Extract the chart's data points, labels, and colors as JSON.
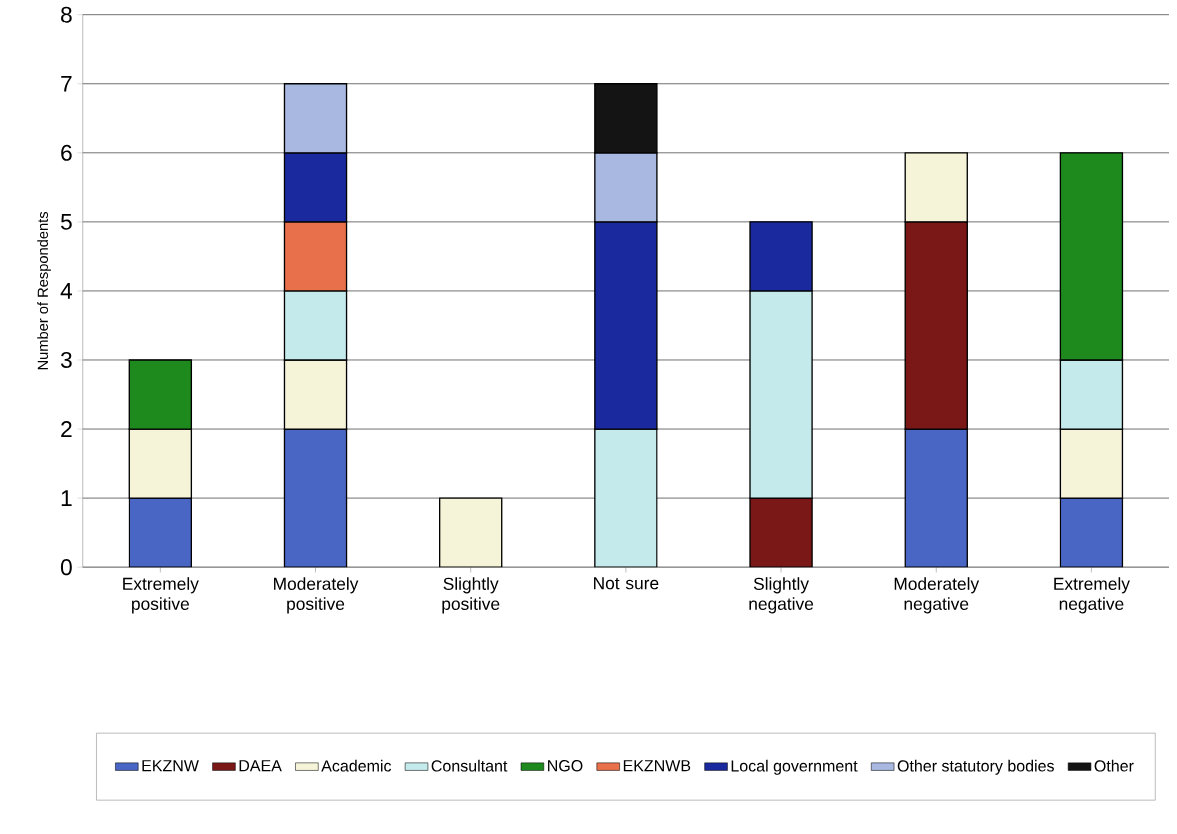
{
  "chart_data": {
    "type": "bar",
    "stacked": true,
    "ylabel": "Number of Respondents",
    "categories": [
      "Extremely positive",
      "Moderately positive",
      "Slightly positive",
      "Not sure",
      "Slightly negative",
      "Moderately negative",
      "Extremely negative"
    ],
    "series": [
      {
        "name": "EKZNW",
        "color": "#4a66c4",
        "values": [
          1,
          2,
          null,
          null,
          null,
          2,
          1
        ]
      },
      {
        "name": "DAEA",
        "color": "#7a1818",
        "values": [
          null,
          null,
          null,
          null,
          1,
          3,
          null
        ]
      },
      {
        "name": "Academic",
        "color": "#f6f4d8",
        "values": [
          1,
          1,
          1,
          null,
          null,
          1,
          1
        ]
      },
      {
        "name": "Consultant",
        "color": "#c4eaec",
        "values": [
          null,
          1,
          null,
          2,
          3,
          null,
          1
        ]
      },
      {
        "name": "NGO",
        "color": "#1e8a1e",
        "values": [
          1,
          null,
          null,
          null,
          null,
          null,
          3
        ]
      },
      {
        "name": "EKZNWB",
        "color": "#e8704a",
        "values": [
          null,
          1,
          null,
          null,
          null,
          null,
          null
        ]
      },
      {
        "name": "Local government",
        "color": "#1a2a9e",
        "values": [
          null,
          1,
          null,
          3,
          1,
          null,
          null
        ]
      },
      {
        "name": "Other statutory bodies",
        "color": "#a8b8e0",
        "values": [
          null,
          1,
          null,
          1,
          null,
          null,
          null
        ]
      },
      {
        "name": "Other",
        "color": "#141414",
        "values": [
          null,
          null,
          null,
          1,
          null,
          null,
          null
        ]
      }
    ],
    "ylim": [
      0,
      8
    ],
    "yticks": [
      0,
      1,
      2,
      3,
      4,
      5,
      6,
      7,
      8
    ],
    "grid": "y",
    "legend": "bottom"
  }
}
